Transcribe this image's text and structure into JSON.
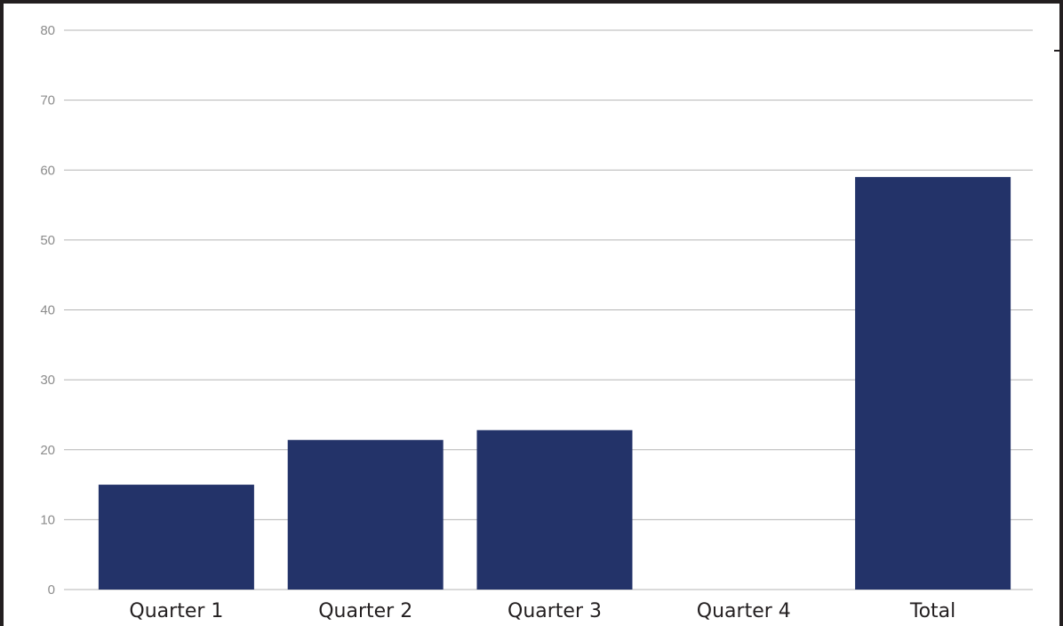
{
  "chart_data": {
    "type": "bar",
    "categories": [
      "Quarter 1",
      "Quarter 2",
      "Quarter 3",
      "Quarter 4",
      "Total"
    ],
    "values": [
      15,
      21.4,
      22.8,
      0,
      59
    ],
    "title": "",
    "xlabel": "",
    "ylabel": "",
    "ylim": [
      0,
      80
    ],
    "yticks": [
      "0",
      "10",
      "20",
      "30",
      "40",
      "50",
      "60",
      "70",
      "80"
    ],
    "grid": true,
    "legend": "none",
    "bar_color": "#233369",
    "grid_color": "#b5b5b5"
  }
}
